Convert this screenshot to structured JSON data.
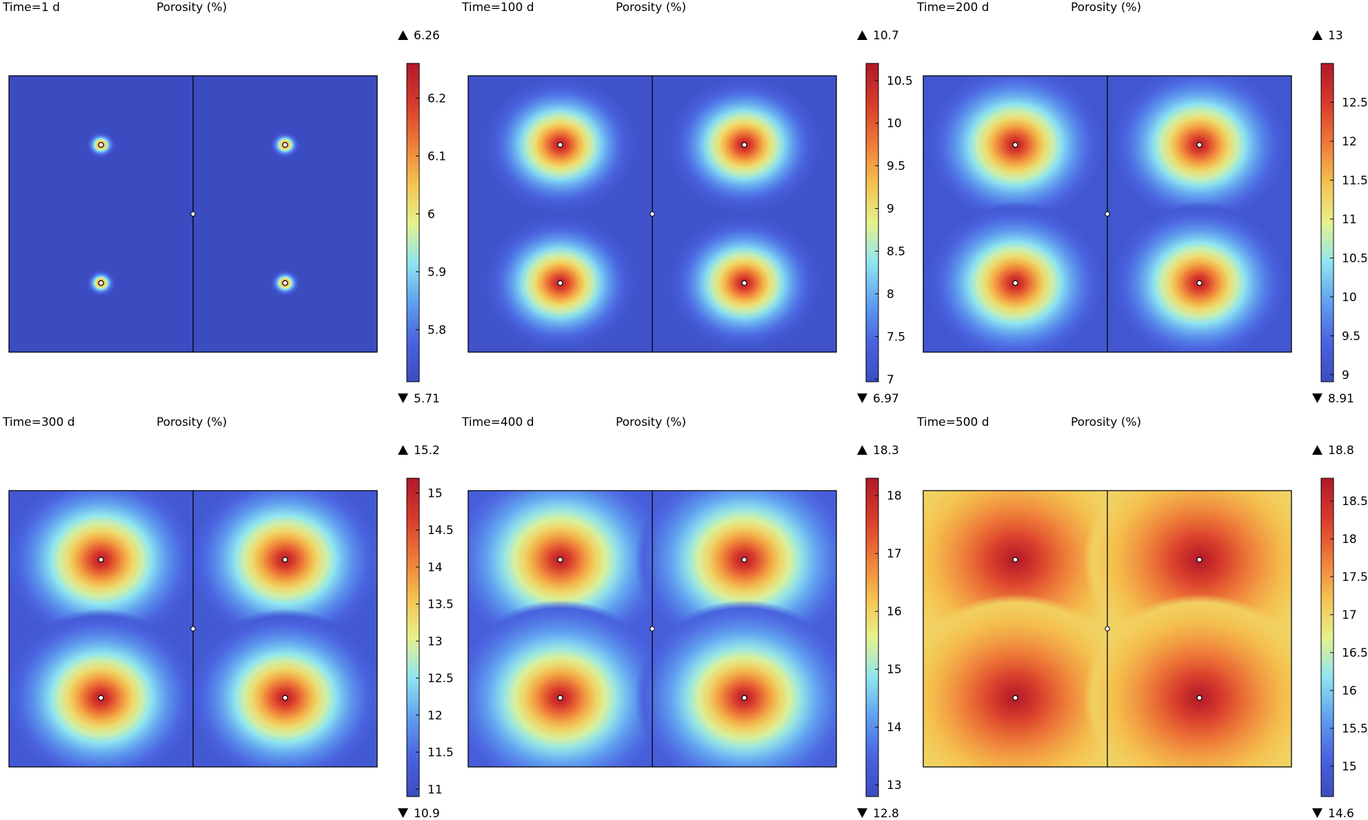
{
  "chart_data": [
    {
      "type": "heatmap",
      "time_label": "Time=1 d",
      "title": "Porosity (%)",
      "min": 5.71,
      "max": 6.26,
      "min_label": "5.71",
      "max_label": "6.26",
      "ticks": [
        5.8,
        5.9,
        6.0,
        6.1,
        6.2
      ],
      "tick_labels": [
        "5.8",
        "5.9",
        "6",
        "6.1",
        "6.2"
      ],
      "spread": 0.09,
      "background_level": 0.0
    },
    {
      "type": "heatmap",
      "time_label": "Time=100 d",
      "title": "Porosity (%)",
      "min": 6.97,
      "max": 10.7,
      "min_label": "6.97",
      "max_label": "10.7",
      "ticks": [
        7,
        7.5,
        8,
        8.5,
        9,
        9.5,
        10,
        10.5
      ],
      "tick_labels": [
        "7",
        "7.5",
        "8",
        "8.5",
        "9",
        "9.5",
        "10",
        "10.5"
      ],
      "spread": 0.47,
      "background_level": 0.04
    },
    {
      "type": "heatmap",
      "time_label": "Time=200 d",
      "title": "Porosity (%)",
      "min": 8.91,
      "max": 13,
      "min_label": "8.91",
      "max_label": "13",
      "ticks": [
        9,
        9.5,
        10,
        10.5,
        11,
        11.5,
        12,
        12.5
      ],
      "tick_labels": [
        "9",
        "9.5",
        "10",
        "10.5",
        "11",
        "11.5",
        "12",
        "12.5"
      ],
      "spread": 0.55,
      "background_level": 0.06
    },
    {
      "type": "heatmap",
      "time_label": "Time=300 d",
      "title": "Porosity (%)",
      "min": 10.9,
      "max": 15.2,
      "min_label": "10.9",
      "max_label": "15.2",
      "ticks": [
        11,
        11.5,
        12,
        12.5,
        13,
        13.5,
        14,
        14.5,
        15
      ],
      "tick_labels": [
        "11",
        "11.5",
        "12",
        "12.5",
        "13",
        "13.5",
        "14",
        "14.5",
        "15"
      ],
      "spread": 0.6,
      "background_level": 0.07
    },
    {
      "type": "heatmap",
      "time_label": "Time=400 d",
      "title": "Porosity (%)",
      "min": 12.8,
      "max": 18.3,
      "min_label": "12.8",
      "max_label": "18.3",
      "ticks": [
        13,
        14,
        15,
        16,
        17,
        18
      ],
      "tick_labels": [
        "13",
        "14",
        "15",
        "16",
        "17",
        "18"
      ],
      "spread": 0.66,
      "background_level": 0.1
    },
    {
      "type": "heatmap",
      "time_label": "Time=500 d",
      "title": "Porosity (%)",
      "min": 14.6,
      "max": 18.8,
      "min_label": "14.6",
      "max_label": "18.8",
      "ticks": [
        15,
        15.5,
        16,
        16.5,
        17,
        17.5,
        18,
        18.5
      ],
      "tick_labels": [
        "15",
        "15.5",
        "16",
        "16.5",
        "17",
        "17.5",
        "18",
        "18.5"
      ],
      "spread": 0.7,
      "background_level": 0.58
    }
  ],
  "colormap": [
    "#3b4cc0",
    "#4a63e0",
    "#60a0f0",
    "#8fe6f0",
    "#e6f28c",
    "#f5c14e",
    "#ee7a38",
    "#d83a2b",
    "#b0192a"
  ],
  "marker_color": "#ffffff"
}
